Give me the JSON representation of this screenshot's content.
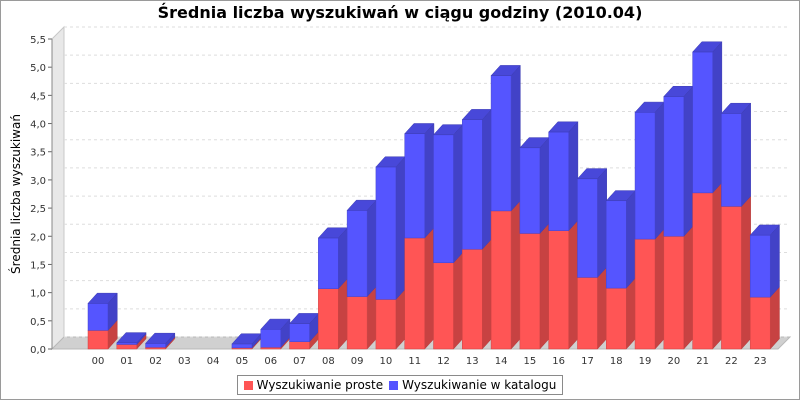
{
  "chart_data": {
    "type": "bar",
    "stacked": true,
    "title": "Średnia liczba wyszukiwań w ciągu godziny (2010.04)",
    "xlabel": "",
    "ylabel": "Średnia liczba wyszukiwań",
    "ylim": [
      0,
      5.5
    ],
    "yticks": [
      "0,0",
      "0,5",
      "1,0",
      "1,5",
      "2,0",
      "2,5",
      "3,0",
      "3,5",
      "4,0",
      "4,5",
      "5,0",
      "5,5"
    ],
    "grid": true,
    "legend_position": "bottom",
    "categories": [
      "00",
      "01",
      "02",
      "03",
      "04",
      "05",
      "06",
      "07",
      "08",
      "09",
      "10",
      "11",
      "12",
      "13",
      "14",
      "15",
      "16",
      "17",
      "18",
      "19",
      "20",
      "21",
      "22",
      "23"
    ],
    "series": [
      {
        "name": "Wyszukiwanie proste",
        "color": "#ff5555",
        "values": [
          0.33,
          0.08,
          0.03,
          0,
          0,
          0.02,
          0.03,
          0.13,
          1.07,
          0.93,
          0.88,
          1.97,
          1.53,
          1.77,
          2.45,
          2.05,
          2.1,
          1.27,
          1.08,
          1.95,
          2.0,
          2.77,
          2.53,
          0.92
        ]
      },
      {
        "name": "Wyszukiwanie w katalogu",
        "color": "#5555ff",
        "values": [
          0.48,
          0.03,
          0.07,
          0,
          0,
          0.07,
          0.32,
          0.32,
          0.9,
          1.53,
          2.35,
          1.85,
          2.27,
          2.3,
          2.4,
          1.52,
          1.75,
          1.75,
          1.55,
          2.25,
          2.48,
          2.5,
          1.65,
          1.1
        ]
      }
    ]
  }
}
